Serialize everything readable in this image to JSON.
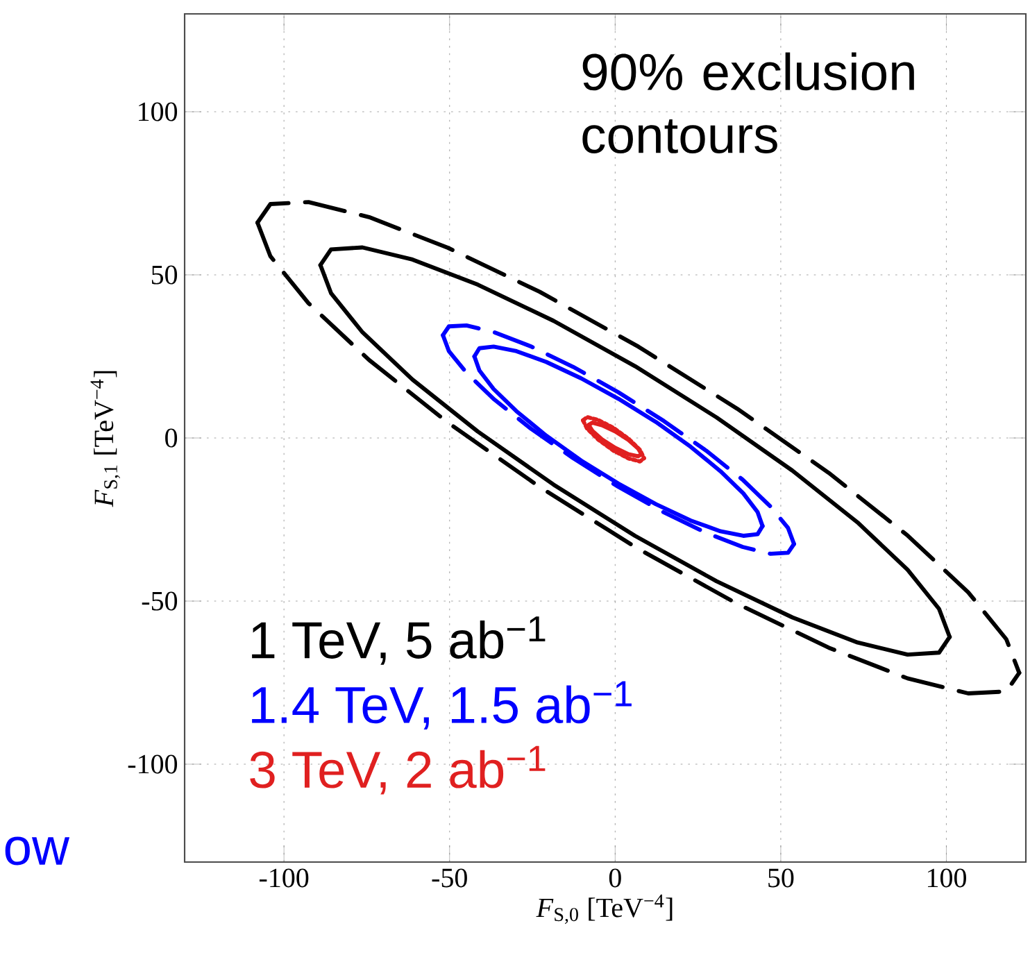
{
  "chart_data": {
    "type": "line",
    "xlabel": "*F*$_{S,0}$ [TeV$^{−4}$]",
    "ylabel": "*F*$_{S,1}$ [TeV$^{−4}$]",
    "annotations": [
      "90% exclusion contours",
      "ow"
    ],
    "xlim": [
      -130,
      124
    ],
    "ylim": [
      -130,
      130
    ],
    "xticks": [
      -100,
      -50,
      0,
      50,
      100
    ],
    "yticks": [
      -100,
      -50,
      0,
      50,
      100
    ],
    "grid": true,
    "series": [
      {
        "name": "1 TeV, 5 ab$^{−1}$",
        "color": "#000000",
        "line_style": "solid",
        "x": [
          -89,
          -85.8,
          -76.3,
          -61.2,
          -41.5,
          -18.6,
          6,
          30.6,
          53.5,
          73.2,
          88.3,
          97.8,
          101
        ],
        "values": [
          53,
          57.8,
          58.4,
          54.7,
          47,
          35.9,
          22,
          6.3,
          -10,
          -25.9,
          -40.4,
          -52.4,
          -61
        ]
      },
      {
        "color": "#000000",
        "line_style": "solid",
        "x": [
          -89,
          -85.8,
          -76.3,
          -61.2,
          -41.5,
          -18.6,
          6,
          30.6,
          53.5,
          73.2,
          88.3,
          97.8,
          101
        ],
        "values": [
          53,
          44.4,
          32.4,
          17.9,
          2,
          -14.3,
          -30,
          -43.9,
          -55,
          -62.7,
          -66.4,
          -65.8,
          -61
        ]
      },
      {
        "color": "#000000",
        "line_style": "dashed",
        "x": [
          -108,
          -104.1,
          -92.6,
          -74.3,
          -50.5,
          -22.8,
          7,
          36.8,
          64.5,
          88.3,
          106.6,
          118.1,
          122
        ],
        "values": [
          66,
          71.7,
          72.3,
          67.7,
          58.3,
          44.8,
          28,
          9,
          -10.7,
          -29.9,
          -47.3,
          -61.7,
          -72
        ]
      },
      {
        "color": "#000000",
        "line_style": "dashed",
        "x": [
          -108,
          -104.1,
          -92.6,
          -74.3,
          -50.5,
          -22.8,
          7,
          36.8,
          64.5,
          88.3,
          106.6,
          118.1,
          122
        ],
        "values": [
          66,
          55.7,
          41.3,
          23.9,
          4.7,
          -15,
          -34,
          -50.8,
          -64.3,
          -73.7,
          -78.3,
          -77.7,
          -72
        ]
      },
      {
        "name": "1.4 TeV, 1.5 ab$^{−1}$",
        "color": "#0000ff",
        "line_style": "solid",
        "x": [
          -42.5,
          -41,
          -36.7,
          -29.8,
          -20.8,
          -10.3,
          1,
          12.3,
          22.8,
          31.8,
          38.7,
          43,
          44.5
        ],
        "values": [
          25,
          27.5,
          28,
          26.6,
          23.3,
          18.3,
          12,
          4.9,
          -2.7,
          -10.2,
          -17,
          -22.7,
          -27
        ]
      },
      {
        "color": "#0000ff",
        "line_style": "solid",
        "x": [
          -42.5,
          -41,
          -36.7,
          -29.8,
          -20.8,
          -10.3,
          1,
          12.3,
          22.8,
          31.8,
          38.7,
          43,
          44.5
        ],
        "values": [
          25,
          20.7,
          15,
          8.2,
          0.7,
          -6.9,
          -14,
          -20.3,
          -25.3,
          -28.6,
          -30,
          -29.5,
          -27
        ]
      },
      {
        "color": "#0000ff",
        "line_style": "dashed",
        "x": [
          -52,
          -50.2,
          -44.9,
          -36.5,
          -25.5,
          -12.7,
          1,
          14.7,
          27.5,
          38.5,
          46.9,
          52.2,
          54
        ],
        "values": [
          31.5,
          34.2,
          34.5,
          32.4,
          28.1,
          21.8,
          14,
          5.2,
          -3.9,
          -12.8,
          -21,
          -27.6,
          -32.5
        ]
      },
      {
        "color": "#0000ff",
        "line_style": "dashed",
        "x": [
          -52,
          -50.2,
          -44.9,
          -36.5,
          -25.5,
          -12.7,
          1,
          14.7,
          27.5,
          38.5,
          46.9,
          52.2,
          54
        ],
        "values": [
          31.5,
          26.6,
          20,
          11.8,
          2.9,
          -6.2,
          -15,
          -22.8,
          -29.1,
          -33.4,
          -35.5,
          -35.2,
          -32.5
        ]
      },
      {
        "name": "3 TeV, 2 ab$^{−1}$",
        "color": "#e02020",
        "line_style": "solid",
        "x": [
          -8,
          -6.9,
          -4,
          0,
          4,
          6.9,
          8
        ],
        "values": [
          4,
          4.7,
          3.9,
          2,
          -0.6,
          -3.2,
          -5
        ]
      },
      {
        "color": "#e02020",
        "line_style": "solid",
        "x": [
          -8,
          -6.9,
          -4,
          0,
          4,
          6.9,
          8
        ],
        "values": [
          4,
          2.2,
          -0.4,
          -3,
          -5,
          -5.6,
          -5
        ]
      },
      {
        "color": "#e02020",
        "line_style": "dotted",
        "x": [
          -9.7,
          -8.5,
          -5.1,
          -0.5,
          4.1,
          7.5,
          8.7
        ],
        "values": [
          5.4,
          6.4,
          5.5,
          3.1,
          -0.3,
          -3.7,
          -6.2
        ]
      },
      {
        "color": "#e02020",
        "line_style": "dotted",
        "x": [
          -9.7,
          -8.5,
          -5.1,
          -0.5,
          4.1,
          7.5,
          8.7
        ],
        "values": [
          5.4,
          2.9,
          -0.5,
          -3.9,
          -6.3,
          -7.2,
          -6.2
        ]
      }
    ]
  }
}
